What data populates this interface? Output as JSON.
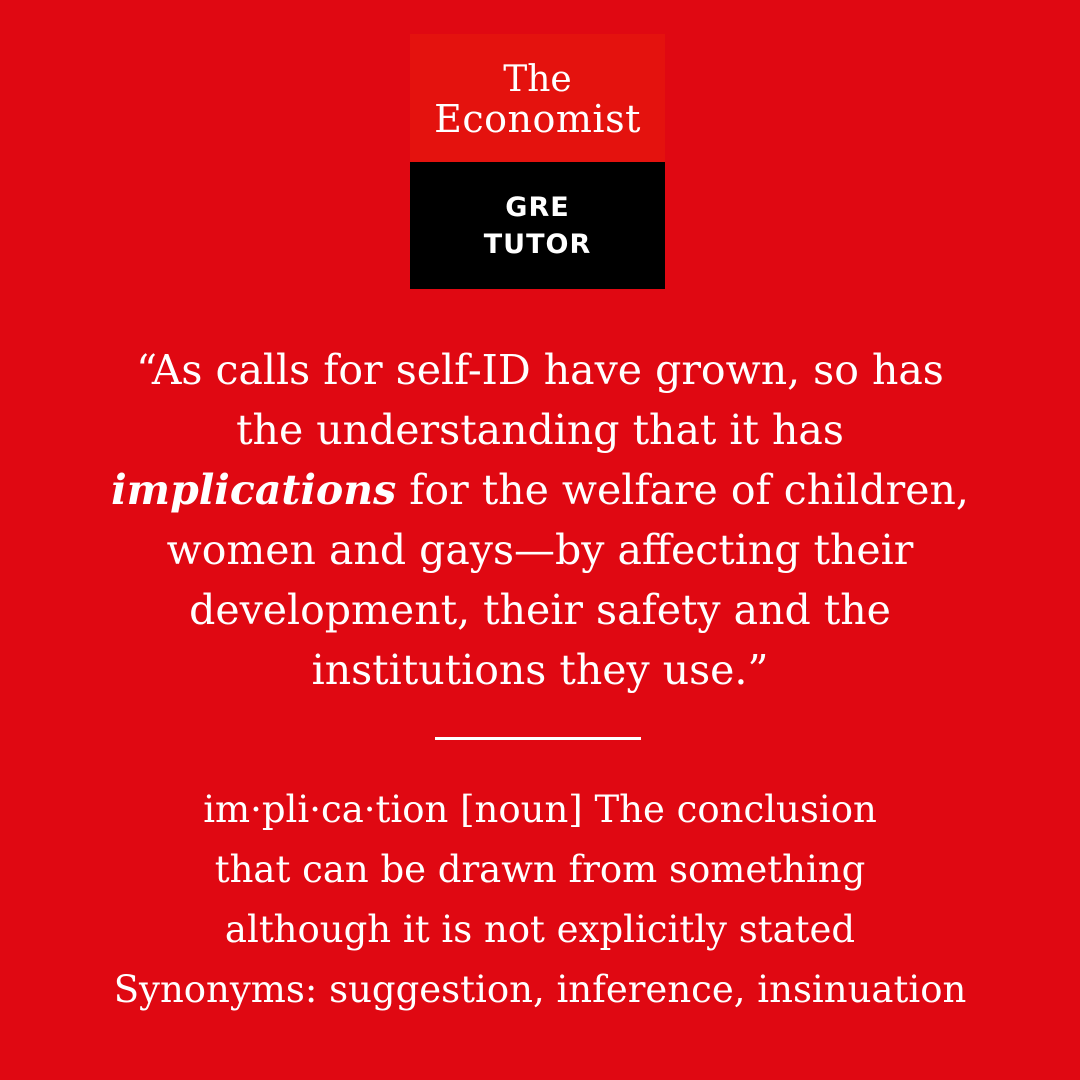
{
  "logo": {
    "line1": "The",
    "line2": "Economist",
    "tag_line1": "GRE",
    "tag_line2": "TUTOR"
  },
  "quote": {
    "line1": "“As calls for self-ID have grown, so has",
    "line2": "the understanding that it has",
    "line3_emphasis": "implications",
    "line3_rest": " for the welfare of children,",
    "line4": "women and gays—by affecting their",
    "line5": "development, their safety and the",
    "line6": "institutions they use.”"
  },
  "definition": {
    "line1": "im·pli·ca·tion [noun] The conclusion",
    "line2": "that can be drawn from something",
    "line3": "although it is not explicitly stated",
    "line4": "Synonyms: suggestion, inference, insinuation"
  },
  "colors": {
    "background": "#e00812",
    "logo_red": "#e4120e",
    "logo_black": "#000000",
    "text": "#ffffff"
  }
}
